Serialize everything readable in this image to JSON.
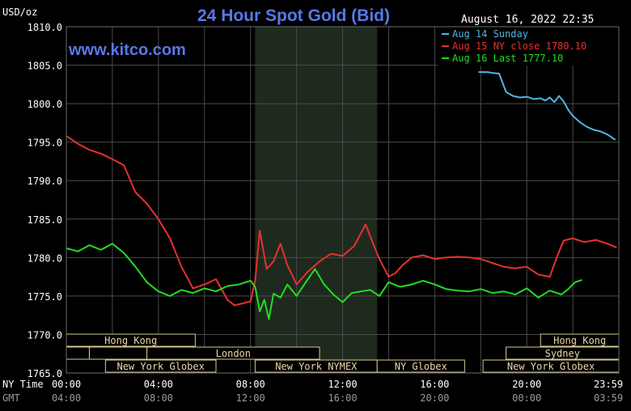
{
  "chart_data": {
    "type": "line",
    "title": "24 Hour Spot Gold (Bid)",
    "watermark": "www.kitco.com",
    "timestamp": "August 16, 2022 22:35",
    "unit_label": "USD/oz",
    "ylim": [
      1765,
      1810
    ],
    "y_ticks": [
      "1810.0",
      "1805.0",
      "1800.0",
      "1795.0",
      "1790.0",
      "1785.0",
      "1780.0",
      "1775.0",
      "1770.0",
      "1765.0"
    ],
    "y_tick_values": [
      1810,
      1805,
      1800,
      1795,
      1790,
      1785,
      1780,
      1775,
      1770,
      1765
    ],
    "x_range_hours": [
      0,
      24
    ],
    "x_tick_hours": [
      0,
      4,
      8,
      12,
      16,
      20,
      24
    ],
    "x_rows": [
      {
        "label": "NY Time",
        "ticks": [
          "00:00",
          "04:00",
          "08:00",
          "12:00",
          "16:00",
          "20:00",
          "23:59"
        ]
      },
      {
        "label": "GMT",
        "ticks": [
          "04:00",
          "08:00",
          "12:00",
          "16:00",
          "20:00",
          "00:00",
          "03:59"
        ]
      }
    ],
    "grid": true,
    "shaded_session_hours": [
      8.2,
      13.5
    ],
    "sessions": [
      {
        "label": "Hong Kong",
        "row": 0,
        "start": 0,
        "end": 5.6
      },
      {
        "label": "Hong Kong",
        "row": 0,
        "start": 20.6,
        "end": 24
      },
      {
        "label": "",
        "row": 1,
        "start": 0,
        "end": 1
      },
      {
        "label": "",
        "row": 1,
        "start": 1,
        "end": 3.5
      },
      {
        "label": "London",
        "row": 1,
        "start": 3.5,
        "end": 11
      },
      {
        "label": "Sydney",
        "row": 1,
        "start": 19.1,
        "end": 24
      },
      {
        "label": "New York Globex",
        "row": 2,
        "start": 1.7,
        "end": 6.5
      },
      {
        "label": "New York NYMEX",
        "row": 2,
        "start": 8.2,
        "end": 13.5
      },
      {
        "label": "NY Globex",
        "row": 2,
        "start": 13.5,
        "end": 17.3
      },
      {
        "label": "New York Globex",
        "row": 2,
        "start": 18.1,
        "end": 24
      }
    ],
    "legend": "top-right",
    "series": [
      {
        "name": "Aug 14 Sunday",
        "color": "#4fb4e6",
        "x": [
          17.9,
          18.3,
          18.5,
          18.8,
          19.1,
          19.4,
          19.7,
          20.0,
          20.3,
          20.6,
          20.8,
          21.0,
          21.2,
          21.4,
          21.6,
          21.8,
          22.0,
          22.3,
          22.6,
          22.9,
          23.2,
          23.5,
          23.7,
          23.85
        ],
        "y": [
          1804.1,
          1804.1,
          1804.0,
          1803.9,
          1801.5,
          1801.0,
          1800.8,
          1800.9,
          1800.6,
          1800.7,
          1800.4,
          1800.8,
          1800.2,
          1801.0,
          1800.3,
          1799.2,
          1798.4,
          1797.6,
          1797.0,
          1796.6,
          1796.4,
          1796.0,
          1795.6,
          1795.3
        ]
      },
      {
        "name": "Aug 15 NY close 1780.10",
        "color": "#e83030",
        "x": [
          0,
          0.5,
          1,
          1.5,
          2,
          2.5,
          3,
          3.5,
          4,
          4.5,
          5,
          5.5,
          6,
          6.5,
          7,
          7.3,
          7.6,
          8,
          8.2,
          8.4,
          8.7,
          9,
          9.3,
          9.6,
          10,
          10.5,
          11,
          11.5,
          12,
          12.5,
          13,
          13.3,
          13.6,
          14,
          14.3,
          14.6,
          15,
          15.5,
          16,
          16.5,
          17,
          17.5,
          18,
          18.5,
          19,
          19.5,
          20,
          20.5,
          21,
          21.3,
          21.6,
          22,
          22.5,
          23,
          23.5,
          23.9
        ],
        "y": [
          1795.8,
          1794.8,
          1794.0,
          1793.5,
          1792.8,
          1792.0,
          1788.5,
          1787.0,
          1785.0,
          1782.5,
          1778.8,
          1776.0,
          1776.5,
          1777.2,
          1774.5,
          1773.8,
          1774.0,
          1774.3,
          1777.0,
          1783.5,
          1778.5,
          1779.5,
          1781.8,
          1779.0,
          1776.5,
          1778.2,
          1779.5,
          1780.5,
          1780.2,
          1781.5,
          1784.3,
          1782.0,
          1779.8,
          1777.5,
          1778.0,
          1779.0,
          1780.0,
          1780.3,
          1779.8,
          1780.0,
          1780.1,
          1780.0,
          1779.8,
          1779.3,
          1778.8,
          1778.6,
          1778.8,
          1777.8,
          1777.5,
          1780.0,
          1782.2,
          1782.5,
          1782.0,
          1782.3,
          1781.8,
          1781.3
        ]
      },
      {
        "name": "Aug 16 Last 1777.10",
        "color": "#22dd22",
        "x": [
          0,
          0.5,
          1,
          1.5,
          2,
          2.5,
          3,
          3.5,
          4,
          4.5,
          5,
          5.5,
          6,
          6.5,
          7,
          7.5,
          8,
          8.2,
          8.4,
          8.6,
          8.8,
          9,
          9.3,
          9.6,
          10,
          10.4,
          10.8,
          11.2,
          11.6,
          12,
          12.4,
          12.8,
          13.2,
          13.6,
          14,
          14.5,
          15,
          15.5,
          16,
          16.5,
          17,
          17.5,
          18,
          18.5,
          19,
          19.5,
          20,
          20.5,
          21,
          21.5,
          21.8,
          22.1,
          22.4
        ],
        "y": [
          1781.2,
          1780.8,
          1781.6,
          1781.0,
          1781.8,
          1780.6,
          1778.8,
          1776.8,
          1775.6,
          1775.0,
          1775.8,
          1775.4,
          1776.0,
          1775.6,
          1776.3,
          1776.5,
          1777.0,
          1776.2,
          1773.0,
          1774.5,
          1772.0,
          1775.3,
          1774.8,
          1776.5,
          1775.0,
          1776.8,
          1778.5,
          1776.5,
          1775.2,
          1774.2,
          1775.4,
          1775.6,
          1775.8,
          1775.0,
          1776.8,
          1776.2,
          1776.5,
          1777.0,
          1776.5,
          1775.9,
          1775.7,
          1775.6,
          1775.9,
          1775.4,
          1775.6,
          1775.2,
          1776.0,
          1774.8,
          1775.7,
          1775.2,
          1775.9,
          1776.8,
          1777.1
        ]
      }
    ]
  }
}
